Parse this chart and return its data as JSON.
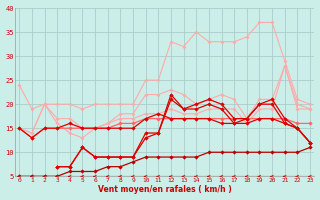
{
  "background_color": "#cceee8",
  "grid_color": "#aacccc",
  "x_label": "Vent moyen/en rafales ( km/h )",
  "x_min": 0,
  "x_max": 23,
  "y_min": 5,
  "y_max": 40,
  "y_ticks": [
    5,
    10,
    15,
    20,
    25,
    30,
    35,
    40
  ],
  "x_ticks": [
    0,
    1,
    2,
    3,
    4,
    5,
    6,
    7,
    8,
    9,
    10,
    11,
    12,
    13,
    14,
    15,
    16,
    17,
    18,
    19,
    20,
    21,
    22,
    23
  ],
  "series": [
    {
      "color": "#ffaaaa",
      "linewidth": 0.8,
      "markersize": 2.0,
      "data_x": [
        0,
        1,
        2,
        3,
        4,
        5,
        6,
        7,
        8,
        9,
        10,
        11,
        12,
        13,
        14,
        15,
        16,
        17,
        18,
        19,
        20,
        21,
        22,
        23
      ],
      "data_y": [
        24,
        19,
        20,
        20,
        20,
        19,
        20,
        20,
        20,
        20,
        25,
        25,
        33,
        32,
        35,
        33,
        33,
        33,
        34,
        37,
        37,
        29,
        21,
        20
      ]
    },
    {
      "color": "#ffaaaa",
      "linewidth": 0.8,
      "markersize": 2.0,
      "data_x": [
        0,
        1,
        2,
        3,
        4,
        5,
        6,
        7,
        8,
        9,
        10,
        11,
        12,
        13,
        14,
        15,
        16,
        17,
        18,
        19,
        20,
        21,
        22,
        23
      ],
      "data_y": [
        15,
        14,
        20,
        17,
        17,
        15,
        15,
        16,
        18,
        18,
        22,
        22,
        23,
        22,
        20,
        21,
        22,
        21,
        17,
        21,
        21,
        28,
        20,
        19
      ]
    },
    {
      "color": "#ffaaaa",
      "linewidth": 0.8,
      "markersize": 2.0,
      "data_x": [
        0,
        1,
        2,
        3,
        4,
        5,
        6,
        7,
        8,
        9,
        10,
        11,
        12,
        13,
        14,
        15,
        16,
        17,
        18,
        19,
        20,
        21,
        22,
        23
      ],
      "data_y": [
        15,
        14,
        20,
        16,
        14,
        13,
        15,
        16,
        17,
        17,
        18,
        18,
        19,
        18,
        18,
        19,
        19,
        19,
        16,
        19,
        19,
        28,
        19,
        19
      ]
    },
    {
      "color": "#ff6666",
      "linewidth": 0.9,
      "markersize": 2.2,
      "data_x": [
        0,
        1,
        2,
        3,
        4,
        5,
        6,
        7,
        8,
        9,
        10,
        11,
        12,
        13,
        14,
        15,
        16,
        17,
        18,
        19,
        20,
        21,
        22,
        23
      ],
      "data_y": [
        15,
        13,
        15,
        15,
        15,
        15,
        15,
        15,
        16,
        16,
        17,
        17,
        17,
        17,
        17,
        17,
        17,
        17,
        17,
        17,
        17,
        17,
        16,
        16
      ]
    },
    {
      "color": "#dd0000",
      "linewidth": 0.9,
      "markersize": 2.2,
      "data_x": [
        0,
        1,
        2,
        3,
        4,
        5,
        6,
        7,
        8,
        9,
        10,
        11,
        12,
        13,
        14,
        15,
        16,
        17,
        18,
        19,
        20,
        21,
        22,
        23
      ],
      "data_y": [
        15,
        13,
        15,
        15,
        16,
        15,
        15,
        15,
        15,
        15,
        17,
        18,
        17,
        17,
        17,
        17,
        16,
        16,
        16,
        17,
        17,
        16,
        15,
        12
      ]
    },
    {
      "color": "#dd0000",
      "linewidth": 0.9,
      "markersize": 2.2,
      "data_x": [
        3,
        4,
        5,
        6,
        7,
        8,
        9,
        10,
        11,
        12,
        13,
        14,
        15,
        16,
        17,
        18,
        19,
        20,
        21,
        22,
        23
      ],
      "data_y": [
        7,
        7,
        11,
        9,
        9,
        9,
        9,
        14,
        14,
        22,
        19,
        20,
        21,
        20,
        17,
        17,
        20,
        21,
        17,
        15,
        12
      ]
    },
    {
      "color": "#dd0000",
      "linewidth": 0.9,
      "markersize": 2.2,
      "data_x": [
        3,
        4,
        5,
        6,
        7,
        8,
        9,
        10,
        11,
        12,
        13,
        14,
        15,
        16,
        17,
        18,
        19,
        20,
        21,
        22,
        23
      ],
      "data_y": [
        7,
        7,
        11,
        9,
        9,
        9,
        9,
        13,
        14,
        21,
        19,
        19,
        20,
        19,
        16,
        17,
        20,
        20,
        16,
        15,
        12
      ]
    },
    {
      "color": "#bb0000",
      "linewidth": 0.9,
      "markersize": 2.2,
      "data_x": [
        0,
        1,
        2,
        3,
        4,
        5,
        6,
        7,
        8,
        9,
        10,
        11,
        12,
        13,
        14,
        15,
        16,
        17,
        18,
        19,
        20,
        21,
        22,
        23
      ],
      "data_y": [
        5,
        5,
        5,
        5,
        6,
        6,
        6,
        7,
        7,
        8,
        9,
        9,
        9,
        9,
        9,
        10,
        10,
        10,
        10,
        10,
        10,
        10,
        10,
        11
      ]
    }
  ]
}
